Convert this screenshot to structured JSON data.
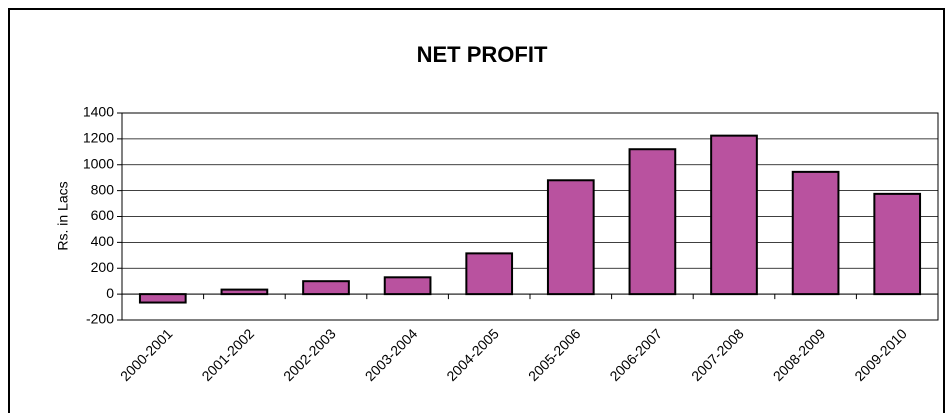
{
  "chart_data": {
    "type": "bar",
    "title": "NET PROFIT",
    "y_label": "Rs. in Lacs",
    "categories": [
      "2000-2001",
      "2001-2002",
      "2002-2003",
      "2003-2004",
      "2004-2005",
      "2005-2006",
      "2006-2007",
      "2007-2008",
      "2008-2009",
      "2009-2010"
    ],
    "values": [
      -65,
      35,
      100,
      130,
      315,
      880,
      1120,
      1225,
      945,
      775
    ],
    "color": "#b9529f",
    "ylim": [
      -200,
      1400
    ],
    "yticks": [
      -200,
      0,
      200,
      400,
      600,
      800,
      1000,
      1200,
      1400
    ],
    "grid": true
  }
}
